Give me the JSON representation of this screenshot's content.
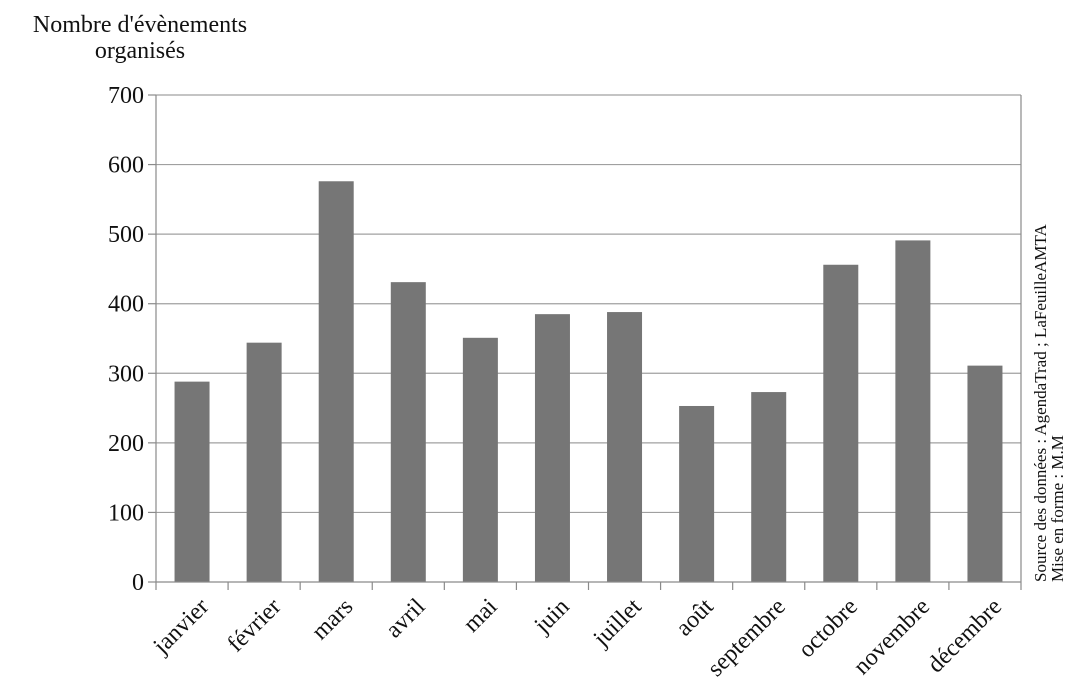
{
  "chart_data": {
    "type": "bar",
    "ylabel": "Nombre d'évènements organisés",
    "xlabel": "",
    "title": "",
    "categories": [
      "janvier",
      "février",
      "mars",
      "avril",
      "mai",
      "juin",
      "juillet",
      "août",
      "septembre",
      "octobre",
      "novembre",
      "décembre"
    ],
    "values": [
      288,
      344,
      576,
      431,
      351,
      385,
      388,
      253,
      273,
      456,
      491,
      311
    ],
    "ylim": [
      0,
      700
    ],
    "yticks": [
      0,
      100,
      200,
      300,
      400,
      500,
      600,
      700
    ],
    "grid": true,
    "colors": {
      "bar": "#767676",
      "grid": "#a0a0a0",
      "axis": "#8a8a8a",
      "text": "#111111"
    },
    "source_note": {
      "line1": "Source des données : AgendaTrad ; LaFeuilleAMTA",
      "line2": "Mise en forme : M.M"
    }
  }
}
